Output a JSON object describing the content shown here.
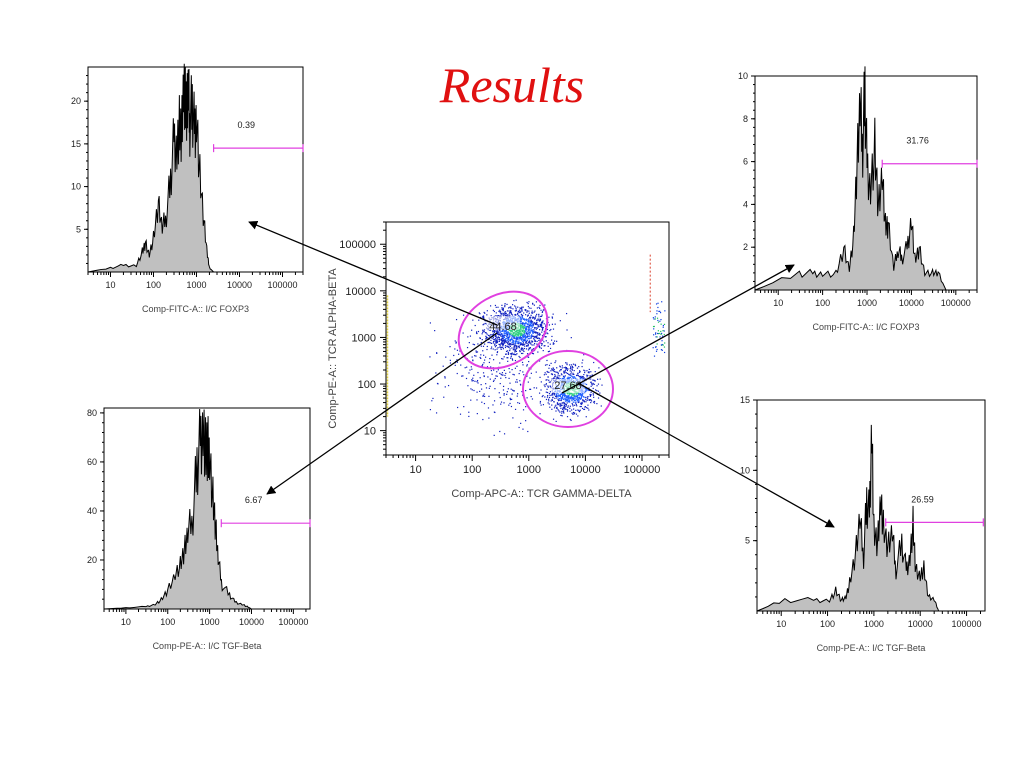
{
  "page": {
    "title": "Results",
    "title_color": "#e01010"
  },
  "colors": {
    "gate": "#e040e0",
    "fill": "#c0c0c0",
    "line": "#000000",
    "frame": "#000000"
  },
  "chart_data": [
    {
      "id": "hist_top_left",
      "type": "area",
      "title": "",
      "xlabel": "Comp-FITC-A:: I/C FOXP3",
      "ylabel": "",
      "xscale": "log",
      "x_ticks": [
        "10",
        "100",
        "1000",
        "10000",
        "100000"
      ],
      "y_ticks": [
        5,
        10,
        15,
        20
      ],
      "ylim": [
        0,
        24
      ],
      "gate": {
        "label": "0.39",
        "x_range": [
          2500,
          300000
        ],
        "y": 14.5
      },
      "x": [
        3,
        10,
        20,
        40,
        55,
        65,
        80,
        100,
        130,
        160,
        200,
        250,
        300,
        350,
        400,
        450,
        500,
        550,
        600,
        650,
        700,
        800,
        900,
        1000,
        1200,
        1500,
        1800,
        2000,
        2500
      ],
      "values": [
        0,
        0.5,
        0.8,
        0.8,
        2.5,
        3.5,
        2,
        4,
        8,
        5,
        7,
        11,
        16,
        15,
        18,
        17,
        22,
        20,
        19,
        21,
        18,
        20,
        17,
        19,
        12,
        6,
        2,
        0.5,
        0
      ]
    },
    {
      "id": "hist_top_right",
      "type": "area",
      "title": "",
      "xlabel": "Comp-FITC-A:: I/C FOXP3",
      "ylabel": "",
      "xscale": "log",
      "x_ticks": [
        "10",
        "100",
        "1000",
        "10000",
        "100000"
      ],
      "y_ticks": [
        2,
        4,
        6,
        8,
        10
      ],
      "ylim": [
        0,
        10
      ],
      "gate": {
        "label": "31.76",
        "x_range": [
          2200,
          300000
        ],
        "y": 5.9
      },
      "x": [
        3,
        30,
        60,
        100,
        200,
        300,
        400,
        500,
        600,
        700,
        800,
        900,
        1000,
        1200,
        1500,
        1800,
        2200,
        2600,
        3000,
        4000,
        5000,
        6000,
        8000,
        10000,
        12000,
        15000,
        20000,
        30000,
        40000,
        60000
      ],
      "values": [
        0,
        0.8,
        0.8,
        0.8,
        0.8,
        2,
        1,
        2.5,
        6,
        8.5,
        7,
        9.5,
        6,
        5,
        7,
        4,
        5.5,
        3,
        3,
        1,
        2,
        1.5,
        2,
        3.5,
        1.5,
        2,
        0.8,
        0.8,
        0.8,
        0
      ]
    },
    {
      "id": "scatter_center",
      "type": "scatter",
      "title": "",
      "xlabel": "Comp-APC-A:: TCR GAMMA-DELTA",
      "ylabel": "Comp-PE-A:: TCR ALPHA-BETA",
      "xscale": "log",
      "yscale": "log",
      "x_ticks": [
        "10",
        "100",
        "1000",
        "10000",
        "100000"
      ],
      "y_ticks": [
        "10",
        "100",
        "1000",
        "10000",
        "100000"
      ],
      "gates": [
        {
          "label": "44.68",
          "cx": 500,
          "cy": 1500,
          "shape": "ellipse"
        },
        {
          "label": "27.68",
          "cx": 5000,
          "cy": 70,
          "shape": "ellipse"
        }
      ],
      "clusters": [
        {
          "name": "TCR alpha-beta+",
          "center_x": 600,
          "center_y": 1500,
          "percent": 44.68
        },
        {
          "name": "TCR gamma-delta+",
          "center_x": 5500,
          "center_y": 80,
          "percent": 27.68
        }
      ]
    },
    {
      "id": "hist_bottom_left",
      "type": "area",
      "title": "",
      "xlabel": "Comp-PE-A:: I/C TGF-Beta",
      "ylabel": "",
      "xscale": "log",
      "x_ticks": [
        "10",
        "100",
        "1000",
        "10000",
        "100000"
      ],
      "y_ticks": [
        20,
        40,
        60,
        80
      ],
      "ylim": [
        0,
        82
      ],
      "gate": {
        "label": "6.67",
        "x_range": [
          1900,
          250000
        ],
        "y": 35
      },
      "x": [
        3,
        10,
        30,
        50,
        70,
        100,
        150,
        200,
        250,
        300,
        400,
        500,
        600,
        700,
        800,
        900,
        1000,
        1200,
        1400,
        1600,
        2000,
        3000,
        4000,
        6000,
        8000,
        10000
      ],
      "values": [
        0,
        0.5,
        1,
        2,
        4,
        8,
        14,
        18,
        24,
        30,
        40,
        60,
        70,
        78,
        68,
        70,
        62,
        45,
        33,
        20,
        10,
        6,
        3,
        2,
        1,
        0
      ]
    },
    {
      "id": "hist_bottom_right",
      "type": "area",
      "title": "",
      "xlabel": "Comp-PE-A:: I/C TGF-Beta",
      "ylabel": "",
      "xscale": "log",
      "x_ticks": [
        "10",
        "100",
        "1000",
        "10000",
        "100000"
      ],
      "y_ticks": [
        5,
        10,
        15
      ],
      "ylim": [
        0,
        15
      ],
      "gate": {
        "label": "26.59",
        "x_range": [
          1800,
          230000
        ],
        "y": 6.3
      },
      "x": [
        3,
        12,
        50,
        110,
        150,
        200,
        250,
        300,
        400,
        500,
        600,
        700,
        800,
        900,
        1000,
        1200,
        1400,
        1600,
        2000,
        2500,
        3000,
        4000,
        5000,
        6000,
        7000,
        8000,
        10000,
        12000,
        15000,
        20000,
        25000
      ],
      "values": [
        0,
        0.8,
        0.8,
        0.8,
        1.5,
        0.8,
        1,
        2,
        4,
        6.5,
        4,
        8,
        7,
        14,
        6,
        5,
        8,
        6,
        4.5,
        5.5,
        3,
        5,
        3,
        4,
        6.5,
        3,
        2.5,
        3,
        1,
        0.8,
        0
      ]
    }
  ],
  "arrows": [
    {
      "from": [
        497,
        325
      ],
      "to": [
        249,
        222
      ]
    },
    {
      "from": [
        497,
        333
      ],
      "to": [
        267,
        494
      ]
    },
    {
      "from": [
        562,
        393
      ],
      "to": [
        794,
        265
      ]
    },
    {
      "from": [
        578,
        383
      ],
      "to": [
        834,
        527
      ]
    }
  ]
}
